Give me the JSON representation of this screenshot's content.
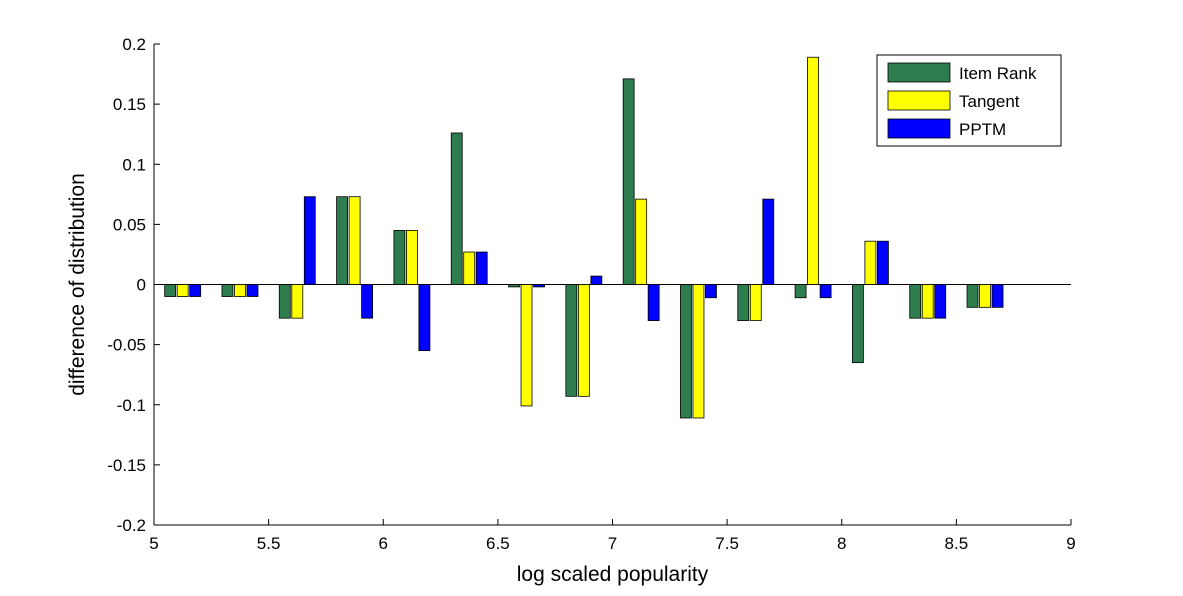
{
  "chart_data": {
    "type": "bar",
    "title": "",
    "xlabel": "log scaled popularity",
    "ylabel": "difference of distribution",
    "xlim": [
      5,
      9
    ],
    "ylim": [
      -0.2,
      0.2
    ],
    "xticks": [
      "5",
      "5.5",
      "6",
      "6.5",
      "7",
      "7.5",
      "8",
      "8.5",
      "9"
    ],
    "yticks": [
      "0.2",
      "0.15",
      "0.1",
      "0.05",
      "0",
      "-0.05",
      "-0.1",
      "-0.15",
      "-0.2"
    ],
    "x": [
      5.125,
      5.375,
      5.625,
      5.875,
      6.125,
      6.375,
      6.625,
      6.875,
      7.125,
      7.375,
      7.625,
      7.875,
      8.125,
      8.375,
      8.625
    ],
    "series": [
      {
        "name": "Item Rank",
        "color": "#2e7d4f",
        "values": [
          -0.01,
          -0.01,
          -0.028,
          0.073,
          0.045,
          0.126,
          -0.002,
          -0.093,
          0.171,
          -0.111,
          -0.03,
          -0.011,
          -0.065,
          -0.028,
          -0.019
        ]
      },
      {
        "name": "Tangent",
        "color": "#ffff00",
        "values": [
          -0.01,
          -0.01,
          -0.028,
          0.073,
          0.045,
          0.027,
          -0.101,
          -0.093,
          0.071,
          -0.111,
          -0.03,
          0.189,
          0.036,
          -0.028,
          -0.019
        ]
      },
      {
        "name": "PPTM",
        "color": "#0000ff",
        "values": [
          -0.01,
          -0.01,
          0.073,
          -0.028,
          -0.055,
          0.027,
          -0.002,
          0.007,
          -0.03,
          -0.011,
          0.071,
          -0.011,
          0.036,
          -0.028,
          -0.019
        ]
      }
    ],
    "legend_position": "top-right",
    "grid": false
  }
}
